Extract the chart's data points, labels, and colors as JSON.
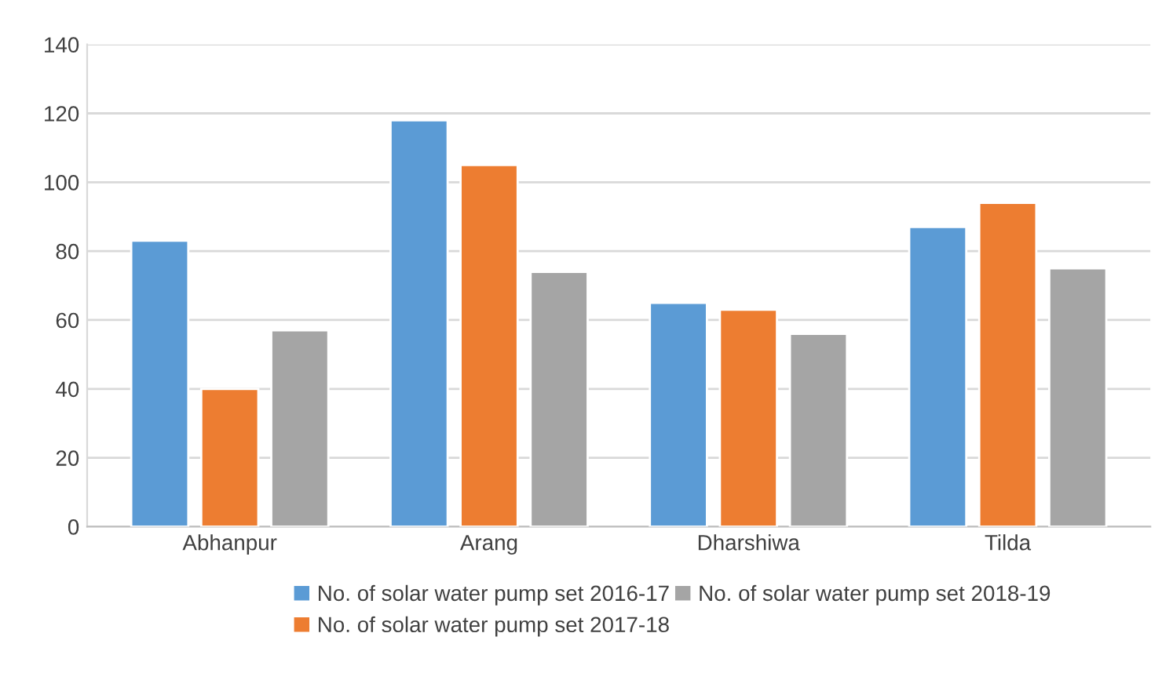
{
  "chart_data": {
    "type": "bar",
    "categories": [
      "Abhanpur",
      "Arang",
      "Dharshiwa",
      "Tilda"
    ],
    "series": [
      {
        "name": "No. of solar water pump set 2016-17",
        "color": "#5b9bd5",
        "values": [
          83,
          118,
          65,
          87
        ]
      },
      {
        "name": "No. of solar water pump set 2017-18",
        "color": "#ed7d31",
        "values": [
          40,
          105,
          63,
          94
        ]
      },
      {
        "name": "No. of solar water pump set 2018-19",
        "color": "#a5a5a5",
        "values": [
          57,
          74,
          56,
          75
        ]
      }
    ],
    "ylim": [
      0,
      140
    ],
    "yticks": [
      0,
      20,
      40,
      60,
      80,
      100,
      120,
      140
    ],
    "grid": "y",
    "legend": "bottom"
  }
}
